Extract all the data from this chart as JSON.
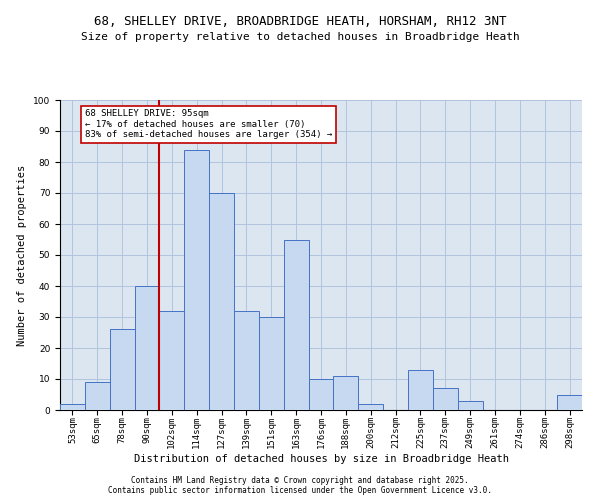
{
  "title1": "68, SHELLEY DRIVE, BROADBRIDGE HEATH, HORSHAM, RH12 3NT",
  "title2": "Size of property relative to detached houses in Broadbridge Heath",
  "xlabel": "Distribution of detached houses by size in Broadbridge Heath",
  "ylabel": "Number of detached properties",
  "categories": [
    "53sqm",
    "65sqm",
    "78sqm",
    "90sqm",
    "102sqm",
    "114sqm",
    "127sqm",
    "139sqm",
    "151sqm",
    "163sqm",
    "176sqm",
    "188sqm",
    "200sqm",
    "212sqm",
    "225sqm",
    "237sqm",
    "249sqm",
    "261sqm",
    "274sqm",
    "286sqm",
    "298sqm"
  ],
  "values": [
    2,
    9,
    26,
    40,
    32,
    84,
    70,
    32,
    30,
    55,
    10,
    11,
    2,
    0,
    13,
    7,
    3,
    0,
    0,
    0,
    5
  ],
  "bar_color": "#c6d9f0",
  "bar_edgecolor": "#4472c4",
  "vline_x": 3.5,
  "vline_color": "#c00000",
  "annotation_text": "68 SHELLEY DRIVE: 95sqm\n← 17% of detached houses are smaller (70)\n83% of semi-detached houses are larger (354) →",
  "annotation_box_color": "#c00000",
  "ylim": [
    0,
    100
  ],
  "yticks": [
    0,
    10,
    20,
    30,
    40,
    50,
    60,
    70,
    80,
    90,
    100
  ],
  "grid_color": "#b0c4de",
  "background_color": "#dce6f1",
  "footer1": "Contains HM Land Registry data © Crown copyright and database right 2025.",
  "footer2": "Contains public sector information licensed under the Open Government Licence v3.0.",
  "title_fontsize": 9,
  "subtitle_fontsize": 8,
  "axis_label_fontsize": 7.5,
  "tick_fontsize": 6.5,
  "annotation_fontsize": 6.5,
  "footer_fontsize": 5.5
}
